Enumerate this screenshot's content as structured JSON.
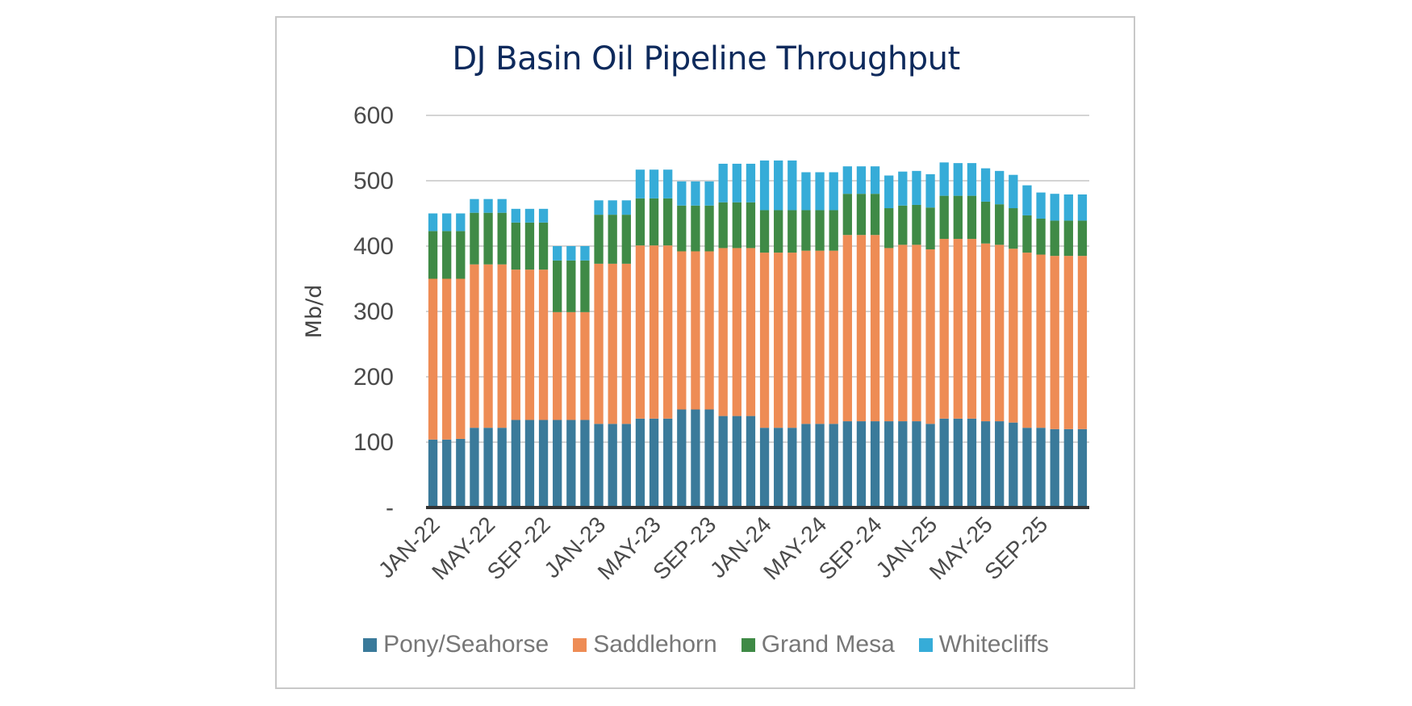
{
  "chart_data": {
    "type": "bar",
    "stacked": true,
    "title": "DJ Basin Oil Pipeline Throughput",
    "ylabel": "Mb/d",
    "ylim": [
      0,
      600
    ],
    "yticks": [
      {
        "value": 0,
        "label": "-"
      },
      {
        "value": 100,
        "label": "100"
      },
      {
        "value": 200,
        "label": "200"
      },
      {
        "value": 300,
        "label": "300"
      },
      {
        "value": 400,
        "label": "400"
      },
      {
        "value": 500,
        "label": "500"
      },
      {
        "value": 600,
        "label": "600"
      }
    ],
    "grid": true,
    "legend_position": "bottom",
    "categories": [
      "JAN-22",
      "FEB-22",
      "MAR-22",
      "APR-22",
      "MAY-22",
      "JUN-22",
      "JUL-22",
      "AUG-22",
      "SEP-22",
      "OCT-22",
      "NOV-22",
      "DEC-22",
      "JAN-23",
      "FEB-23",
      "MAR-23",
      "APR-23",
      "MAY-23",
      "JUN-23",
      "JUL-23",
      "AUG-23",
      "SEP-23",
      "OCT-23",
      "NOV-23",
      "DEC-23",
      "JAN-24",
      "FEB-24",
      "MAR-24",
      "APR-24",
      "MAY-24",
      "JUN-24",
      "JUL-24",
      "AUG-24",
      "SEP-24",
      "OCT-24",
      "NOV-24",
      "DEC-24",
      "JAN-25",
      "FEB-25",
      "MAR-25",
      "APR-25",
      "MAY-25",
      "JUN-25",
      "JUL-25",
      "AUG-25",
      "SEP-25",
      "OCT-25",
      "NOV-25",
      "DEC-25"
    ],
    "xtick_labels": [
      "JAN-22",
      "MAY-22",
      "SEP-22",
      "JAN-23",
      "MAY-23",
      "SEP-23",
      "JAN-24",
      "MAY-24",
      "SEP-24",
      "JAN-25",
      "MAY-25",
      "SEP-25"
    ],
    "series": [
      {
        "name": "Pony/Seahorse",
        "color": "#3a7a9a",
        "values": [
          104,
          104,
          105,
          122,
          122,
          122,
          134,
          134,
          134,
          134,
          134,
          134,
          128,
          128,
          128,
          136,
          136,
          136,
          150,
          150,
          150,
          140,
          140,
          140,
          122,
          122,
          122,
          128,
          128,
          128,
          132,
          132,
          132,
          132,
          132,
          132,
          128,
          136,
          136,
          136,
          132,
          132,
          130,
          122,
          122,
          120,
          120,
          120
        ]
      },
      {
        "name": "Saddlehorn",
        "color": "#ee8c55",
        "values": [
          246,
          246,
          245,
          250,
          250,
          250,
          230,
          230,
          230,
          165,
          165,
          165,
          245,
          245,
          245,
          265,
          265,
          265,
          242,
          242,
          242,
          257,
          257,
          257,
          268,
          268,
          268,
          265,
          265,
          265,
          285,
          285,
          285,
          265,
          270,
          270,
          267,
          275,
          275,
          275,
          272,
          270,
          266,
          268,
          265,
          265,
          265,
          265
        ]
      },
      {
        "name": "Grand Mesa",
        "color": "#3f8a46",
        "values": [
          73,
          73,
          73,
          79,
          79,
          79,
          72,
          72,
          72,
          79,
          79,
          79,
          75,
          75,
          75,
          72,
          72,
          72,
          70,
          70,
          70,
          70,
          70,
          70,
          65,
          65,
          65,
          62,
          62,
          62,
          63,
          63,
          63,
          61,
          60,
          61,
          64,
          66,
          66,
          66,
          64,
          62,
          62,
          57,
          55,
          54,
          54,
          54
        ]
      },
      {
        "name": "Whitecliffs",
        "color": "#36acd8",
        "values": [
          27,
          27,
          27,
          21,
          21,
          21,
          21,
          21,
          21,
          22,
          22,
          22,
          22,
          22,
          22,
          44,
          44,
          44,
          37,
          37,
          37,
          59,
          59,
          59,
          76,
          76,
          76,
          58,
          58,
          58,
          42,
          42,
          42,
          50,
          52,
          52,
          51,
          51,
          50,
          50,
          51,
          51,
          51,
          46,
          40,
          41,
          40,
          40
        ]
      }
    ]
  }
}
